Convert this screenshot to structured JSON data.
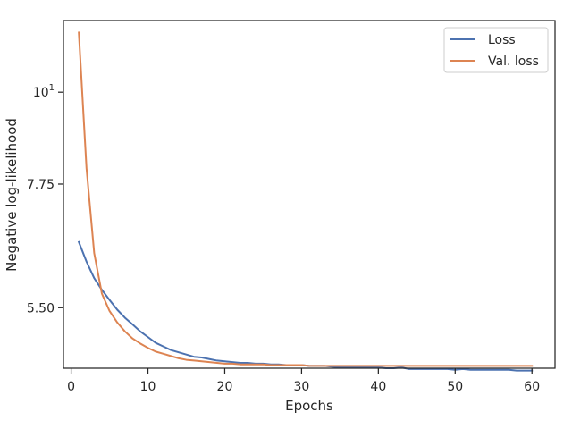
{
  "chart_data": {
    "type": "line",
    "title": "",
    "xlabel": "Epochs",
    "ylabel": "Negative log-likelihood",
    "xlim": [
      -1,
      63
    ],
    "ylim": [
      4.65,
      12.2
    ],
    "yscale": "log",
    "xticks": [
      0,
      10,
      20,
      30,
      40,
      50,
      60
    ],
    "xtick_labels": [
      "0",
      "10",
      "20",
      "30",
      "40",
      "50",
      "60"
    ],
    "yticks": [
      5.5,
      7.75,
      10
    ],
    "ytick_labels": [
      {
        "base": "5.50",
        "sup": ""
      },
      {
        "base": "7.75",
        "sup": ""
      },
      {
        "base": "10",
        "sup": "1"
      }
    ],
    "legend": {
      "position": "upper right"
    },
    "grid": false,
    "series": [
      {
        "name": "Loss",
        "color": "#4c72b0",
        "x": [
          1,
          2,
          3,
          4,
          5,
          6,
          7,
          8,
          9,
          10,
          11,
          12,
          13,
          14,
          15,
          16,
          17,
          18,
          19,
          20,
          21,
          22,
          23,
          24,
          25,
          26,
          27,
          28,
          29,
          30,
          31,
          32,
          33,
          34,
          35,
          36,
          37,
          38,
          39,
          40,
          41,
          42,
          43,
          44,
          45,
          46,
          47,
          48,
          49,
          50,
          51,
          52,
          53,
          54,
          55,
          56,
          57,
          58,
          59,
          60
        ],
        "values": [
          6.6,
          6.25,
          5.97,
          5.78,
          5.62,
          5.47,
          5.35,
          5.25,
          5.15,
          5.07,
          4.99,
          4.94,
          4.89,
          4.86,
          4.83,
          4.8,
          4.79,
          4.77,
          4.75,
          4.74,
          4.73,
          4.72,
          4.72,
          4.71,
          4.71,
          4.7,
          4.7,
          4.69,
          4.69,
          4.69,
          4.68,
          4.68,
          4.68,
          4.67,
          4.66,
          4.66,
          4.66,
          4.66,
          4.66,
          4.66,
          4.65,
          4.65,
          4.66,
          4.64,
          4.64,
          4.64,
          4.64,
          4.64,
          4.64,
          4.63,
          4.64,
          4.63,
          4.63,
          4.63,
          4.63,
          4.63,
          4.63,
          4.62,
          4.62,
          4.62
        ]
      },
      {
        "name": "Val. loss",
        "color": "#dd8452",
        "x": [
          1,
          2,
          3,
          4,
          5,
          6,
          7,
          8,
          9,
          10,
          11,
          12,
          13,
          14,
          15,
          16,
          17,
          18,
          19,
          20,
          21,
          22,
          23,
          24,
          25,
          26,
          27,
          28,
          29,
          30,
          31,
          32,
          33,
          34,
          35,
          36,
          37,
          38,
          39,
          40,
          41,
          42,
          43,
          44,
          45,
          46,
          47,
          48,
          49,
          50,
          51,
          52,
          53,
          54,
          55,
          56,
          57,
          58,
          59,
          60
        ],
        "values": [
          11.8,
          8.1,
          6.4,
          5.72,
          5.45,
          5.28,
          5.15,
          5.05,
          4.98,
          4.92,
          4.87,
          4.84,
          4.81,
          4.78,
          4.76,
          4.75,
          4.74,
          4.73,
          4.72,
          4.71,
          4.71,
          4.7,
          4.7,
          4.7,
          4.7,
          4.69,
          4.69,
          4.69,
          4.69,
          4.69,
          4.68,
          4.68,
          4.68,
          4.68,
          4.68,
          4.68,
          4.68,
          4.68,
          4.68,
          4.68,
          4.68,
          4.68,
          4.68,
          4.68,
          4.68,
          4.68,
          4.68,
          4.68,
          4.68,
          4.68,
          4.68,
          4.68,
          4.68,
          4.68,
          4.68,
          4.68,
          4.68,
          4.68,
          4.68,
          4.68
        ]
      }
    ]
  }
}
